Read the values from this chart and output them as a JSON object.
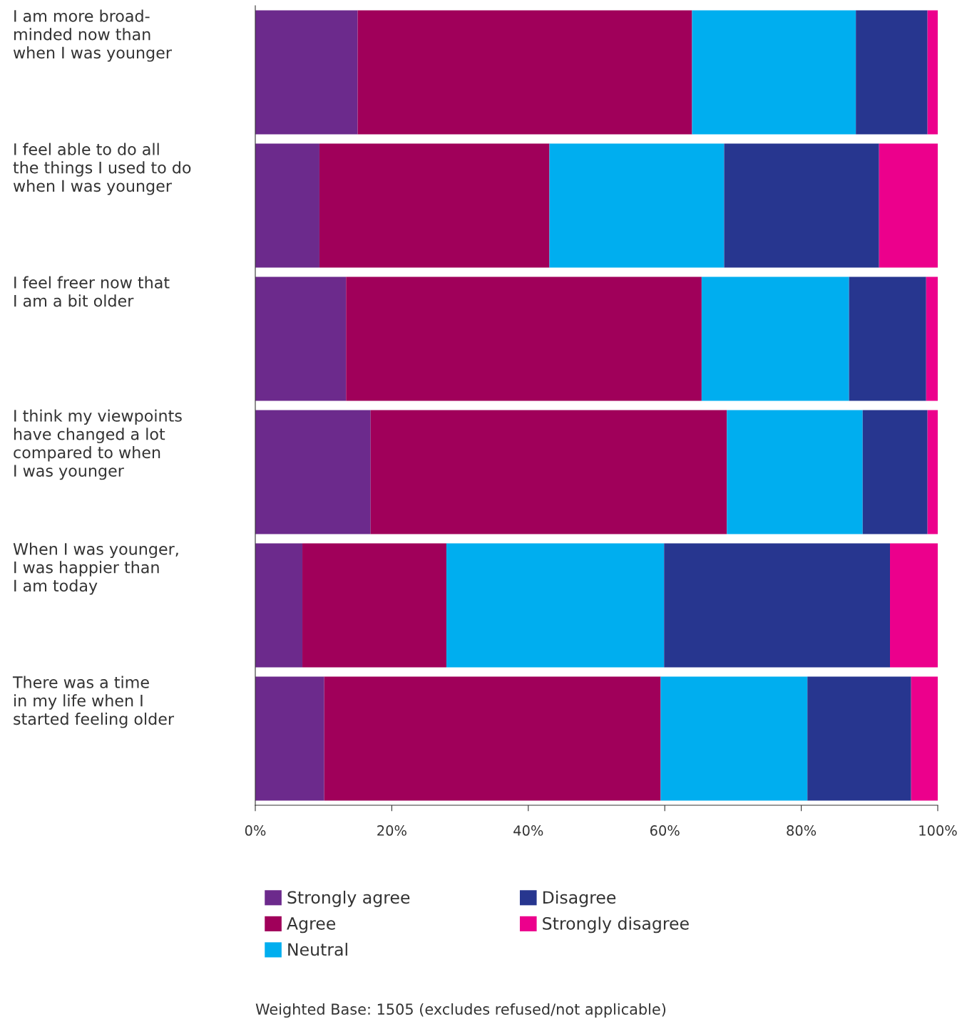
{
  "chart_data": {
    "type": "bar",
    "orientation": "horizontal",
    "stacked": true,
    "categories": [
      "I am more broad-\nminded now than\nwhen I was younger",
      "I feel able to do all\nthe things I used to do\nwhen I was younger",
      "I feel freer now that\nI am a bit older",
      "I think my viewpoints\nhave changed a lot\ncompared to when\nI was younger",
      "When I was younger,\nI was happier than\nI am today",
      "There was a time\nin my life when I\nstarted feeling older"
    ],
    "series": [
      {
        "name": "Strongly agree",
        "color": "#6c2a8c",
        "values": [
          15,
          9.4,
          13.3,
          16.9,
          6.9,
          10.1
        ]
      },
      {
        "name": "Agree",
        "color": "#a0005a",
        "values": [
          49,
          33.7,
          52.1,
          52.2,
          21.1,
          49.3
        ]
      },
      {
        "name": "Neutral",
        "color": "#00aeef",
        "values": [
          24,
          25.6,
          21.6,
          19.9,
          31.9,
          21.5
        ]
      },
      {
        "name": "Disagree",
        "color": "#27368f",
        "values": [
          10.5,
          22.7,
          11.3,
          9.5,
          33.1,
          15.2
        ]
      },
      {
        "name": "Strongly disagree",
        "color": "#ec008c",
        "values": [
          1.5,
          8.6,
          1.7,
          1.5,
          7.0,
          3.9
        ]
      }
    ],
    "xlim": [
      0,
      100
    ],
    "xticks": [
      {
        "value": 0,
        "label": "0%"
      },
      {
        "value": 20,
        "label": "20%"
      },
      {
        "value": 40,
        "label": "40%"
      },
      {
        "value": 60,
        "label": "60%"
      },
      {
        "value": 80,
        "label": "80%"
      },
      {
        "value": 100,
        "label": "100%"
      }
    ],
    "grid": false,
    "legend": "bottom",
    "annotations": [
      "Weighted Base: 1505 (excludes refused/not applicable)"
    ]
  }
}
